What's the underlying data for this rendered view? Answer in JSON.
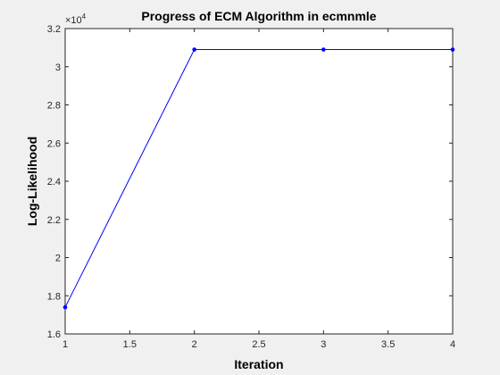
{
  "chart_data": {
    "type": "line",
    "title": "Progress of ECM Algorithm in ecmnmle",
    "xlabel": "Iteration",
    "ylabel": "Log-Likelihood",
    "x": [
      1,
      2,
      3,
      4
    ],
    "series": [
      {
        "values": [
          17400,
          30900,
          30900,
          30900
        ],
        "color": "#0000ff",
        "marker": "dot"
      }
    ],
    "xlim": [
      1,
      4
    ],
    "ylim": [
      16000,
      32000
    ],
    "xticks": [
      1,
      1.5,
      2,
      2.5,
      3,
      3.5,
      4
    ],
    "xtick_labels": [
      "1",
      "1.5",
      "2",
      "2.5",
      "3",
      "3.5",
      "4"
    ],
    "yticks": [
      16000,
      18000,
      20000,
      22000,
      24000,
      26000,
      28000,
      30000,
      32000
    ],
    "ytick_labels": [
      "1.6",
      "1.8",
      "2",
      "2.2",
      "2.4",
      "2.6",
      "2.8",
      "3",
      "3.2"
    ],
    "y_exponent_base": "×10",
    "y_exponent_power": "4",
    "grid": false,
    "legend": "none"
  },
  "colors": {
    "figure_background": "#f0f0f0",
    "axes_background": "#ffffff",
    "axis": "#262626",
    "line": "#0000ff"
  }
}
